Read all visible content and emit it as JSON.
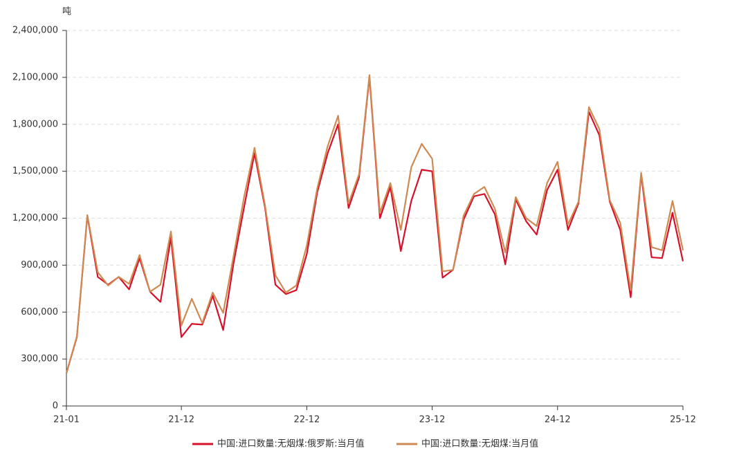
{
  "chart_data": {
    "type": "line",
    "y_unit": "吨",
    "categories": [
      "21-01",
      null,
      null,
      null,
      null,
      null,
      null,
      null,
      null,
      null,
      null,
      "21-12",
      null,
      null,
      null,
      null,
      null,
      null,
      null,
      null,
      null,
      null,
      null,
      "22-12",
      null,
      null,
      null,
      null,
      null,
      null,
      null,
      null,
      null,
      null,
      null,
      "23-12",
      null,
      null,
      null,
      null,
      null,
      null,
      null,
      null,
      null,
      null,
      null,
      "24-12",
      null,
      null,
      null,
      null,
      null,
      null,
      null,
      null,
      null,
      null,
      null,
      "25-12"
    ],
    "series": [
      {
        "name": "中国:进口数量:无烟煤:俄罗斯:当月值",
        "color": "#d7102a",
        "values": [
          210000,
          440000,
          1215000,
          825000,
          775000,
          825000,
          745000,
          945000,
          730000,
          665000,
          1075000,
          440000,
          525000,
          520000,
          705000,
          485000,
          915000,
          1270000,
          1615000,
          1270000,
          775000,
          715000,
          740000,
          970000,
          1365000,
          1615000,
          1800000,
          1265000,
          1460000,
          2105000,
          1200000,
          1400000,
          990000,
          1310000,
          1510000,
          1500000,
          820000,
          870000,
          1190000,
          1340000,
          1355000,
          1225000,
          905000,
          1320000,
          1180000,
          1095000,
          1380000,
          1510000,
          1125000,
          1295000,
          1880000,
          1730000,
          1305000,
          1125000,
          695000,
          1480000,
          950000,
          945000,
          1235000,
          925000
        ]
      },
      {
        "name": "中国:进口数量:无烟煤:当月值",
        "color": "#cd8a52",
        "values": [
          210000,
          445000,
          1220000,
          855000,
          770000,
          825000,
          780000,
          965000,
          730000,
          775000,
          1115000,
          515000,
          685000,
          530000,
          725000,
          595000,
          960000,
          1335000,
          1650000,
          1285000,
          835000,
          725000,
          770000,
          1025000,
          1390000,
          1660000,
          1855000,
          1295000,
          1480000,
          2115000,
          1235000,
          1425000,
          1125000,
          1525000,
          1675000,
          1580000,
          860000,
          870000,
          1215000,
          1355000,
          1400000,
          1260000,
          980000,
          1335000,
          1200000,
          1150000,
          1425000,
          1560000,
          1160000,
          1305000,
          1910000,
          1770000,
          1315000,
          1170000,
          740000,
          1490000,
          1015000,
          995000,
          1310000,
          995000
        ]
      }
    ],
    "ylim": [
      0,
      2400000
    ],
    "yticks": [
      0,
      {
        "value": 300000,
        "label": "300,000"
      },
      {
        "value": 600000,
        "label": "600,000"
      },
      {
        "value": 900000,
        "label": "900,000"
      },
      {
        "value": 1200000,
        "label": "1,200,000"
      },
      {
        "value": 1500000,
        "label": "1,500,000"
      },
      {
        "value": 1800000,
        "label": "1,800,000"
      },
      {
        "value": 2100000,
        "label": "2,100,000"
      },
      {
        "value": 2400000,
        "label": "2,400,000"
      }
    ],
    "grid": true
  }
}
